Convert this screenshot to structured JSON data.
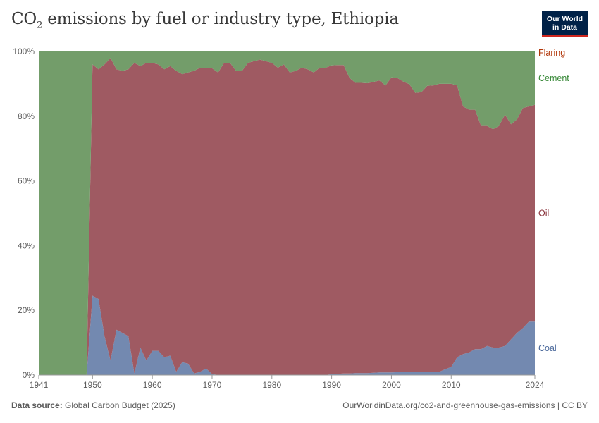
{
  "header": {
    "title_main": "CO",
    "title_sub": "2",
    "title_rest": " emissions by fuel or industry type, Ethiopia",
    "logo_line1": "Our World",
    "logo_line2": "in Data"
  },
  "footer": {
    "source_label": "Data source:",
    "source_value": "Global Carbon Budget (2025)",
    "url": "OurWorldinData.org/co2-and-greenhouse-gas-emissions | CC BY"
  },
  "colors": {
    "coal": "#7389b0",
    "oil": "#9f5a62",
    "cement": "#739d6a",
    "flaring": "#b0533a",
    "coal_label": "#4c6a9c",
    "oil_label": "#883039",
    "cement_label": "#3a8a3a",
    "flaring_label": "#b13507"
  },
  "chart_data": {
    "type": "area",
    "stacked": "percent",
    "title": "CO₂ emissions by fuel or industry type, Ethiopia",
    "xlim": [
      1941,
      2024
    ],
    "ylim": [
      0,
      100
    ],
    "y_ticks": [
      0,
      20,
      40,
      60,
      80,
      100
    ],
    "y_tick_labels": [
      "0%",
      "20%",
      "40%",
      "60%",
      "80%",
      "100%"
    ],
    "x_ticks": [
      1941,
      1950,
      1960,
      1970,
      1980,
      1990,
      2000,
      2010,
      2024
    ],
    "x_tick_labels": [
      "1941",
      "1950",
      "1960",
      "1970",
      "1980",
      "1990",
      "2000",
      "2010",
      "2024"
    ],
    "x": [
      1941,
      1949,
      1950,
      1951,
      1952,
      1953,
      1954,
      1955,
      1956,
      1957,
      1958,
      1959,
      1960,
      1961,
      1962,
      1963,
      1964,
      1965,
      1966,
      1967,
      1968,
      1969,
      1970,
      1971,
      1972,
      1973,
      1974,
      1975,
      1976,
      1977,
      1978,
      1979,
      1980,
      1981,
      1982,
      1983,
      1984,
      1985,
      1986,
      1987,
      1988,
      1989,
      1990,
      1991,
      1992,
      1993,
      1994,
      1995,
      1996,
      1997,
      1998,
      1999,
      2000,
      2001,
      2002,
      2003,
      2004,
      2005,
      2006,
      2007,
      2008,
      2009,
      2010,
      2011,
      2012,
      2013,
      2014,
      2015,
      2016,
      2017,
      2018,
      2019,
      2020,
      2021,
      2022,
      2023,
      2024
    ],
    "series": [
      {
        "name": "Coal",
        "values": [
          0,
          0,
          24.5,
          23.5,
          12,
          4.5,
          14,
          13,
          12,
          0.5,
          8.5,
          4.5,
          7.5,
          7.5,
          5.5,
          6,
          1,
          4,
          3.5,
          0.5,
          1,
          2,
          0.3,
          0,
          0,
          0,
          0,
          0,
          0,
          0,
          0,
          0,
          0,
          0,
          0,
          0,
          0,
          0,
          0,
          0,
          0,
          0,
          0.3,
          0.4,
          0.5,
          0.5,
          0.6,
          0.6,
          0.6,
          0.7,
          0.8,
          0.8,
          0.8,
          0.9,
          0.9,
          0.9,
          0.9,
          1,
          1,
          1,
          1,
          1.8,
          2.5,
          5.5,
          6.5,
          7,
          8,
          8,
          9,
          8.5,
          8.5,
          9,
          11,
          13,
          14.5,
          16.5,
          16.5
        ]
      },
      {
        "name": "Oil",
        "values": [
          0,
          0,
          71.5,
          71,
          84,
          93.5,
          80.5,
          81,
          82.5,
          96,
          87,
          92,
          89,
          88.5,
          89,
          89.5,
          93,
          89,
          90,
          93.5,
          94,
          93,
          94.5,
          93.5,
          96.5,
          96.5,
          94,
          94,
          96.5,
          97,
          97.5,
          97,
          96.5,
          95,
          96,
          93.5,
          94,
          95,
          94.5,
          93.5,
          95,
          95,
          95.4,
          95.4,
          95.3,
          91.3,
          89.7,
          89.7,
          89.6,
          89.9,
          90.2,
          88.7,
          91.2,
          90.9,
          89.8,
          89,
          86.3,
          86.4,
          88.4,
          88.5,
          89,
          88.2,
          87.5,
          84,
          76.5,
          75,
          74,
          69,
          68,
          67.5,
          68.5,
          71.5,
          66.5,
          66,
          68,
          66.5,
          67
        ]
      },
      {
        "name": "Cement",
        "values": [
          100,
          100,
          4,
          5.5,
          4,
          2,
          5.5,
          6,
          5.5,
          3.5,
          4.5,
          3.5,
          3.5,
          4,
          5.5,
          4.5,
          6,
          7,
          6.5,
          6,
          5,
          5,
          5.2,
          6.5,
          3.5,
          3.5,
          6,
          6,
          3.5,
          3,
          2.5,
          3,
          3.5,
          5,
          4,
          6.5,
          6,
          5,
          5.5,
          6.5,
          5,
          5,
          4.3,
          4.2,
          4.2,
          8.2,
          9.7,
          9.7,
          9.8,
          9.4,
          9,
          10.5,
          8,
          8.2,
          9.3,
          10.1,
          12.8,
          12.6,
          10.6,
          10.5,
          10,
          10,
          10,
          10.5,
          17,
          18,
          18,
          23,
          23,
          24,
          23,
          19.5,
          22.5,
          21,
          17.5,
          17,
          16.5
        ]
      },
      {
        "name": "Flaring",
        "values": [
          0,
          0,
          0,
          0,
          0,
          0,
          0,
          0,
          0,
          0,
          0,
          0,
          0,
          0,
          0,
          0,
          0,
          0,
          0,
          0,
          0,
          0,
          0,
          0,
          0,
          0,
          0,
          0,
          0,
          0,
          0,
          0,
          0,
          0,
          0,
          0,
          0,
          0,
          0,
          0,
          0,
          0,
          0,
          0,
          0,
          0,
          0,
          0,
          0,
          0,
          0,
          0,
          0,
          0,
          0,
          0,
          0,
          0,
          0,
          0,
          0,
          0,
          0,
          0,
          0,
          0,
          0,
          0,
          0,
          0,
          0,
          0,
          0,
          0,
          0,
          0,
          0
        ]
      }
    ],
    "series_labels": [
      "Flaring",
      "Cement",
      "Oil",
      "Coal"
    ]
  }
}
